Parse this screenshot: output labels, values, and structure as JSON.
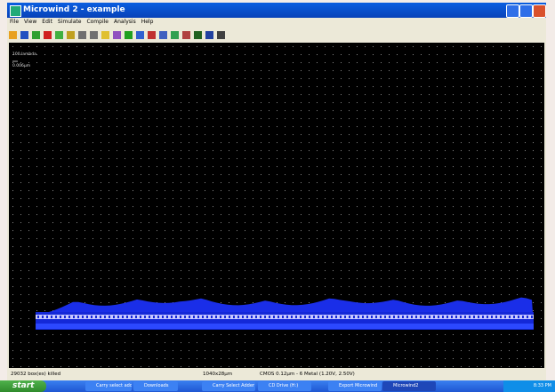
{
  "window": {
    "title": "Microwind 2 - example",
    "menu": [
      "File",
      "View",
      "Edit",
      "Simulate",
      "Compile",
      "Analysis",
      "Help"
    ]
  },
  "canvas": {
    "scale_label": "100 lambda",
    "scale_value": "0.006µm"
  },
  "status": [
    "29032 box(es) killed",
    "1040x28µm",
    "CMOS 0.12µm - 6 Metal (1.20V, 2.50V)"
  ],
  "taskbar": {
    "start": "start",
    "items": [
      "Carry select adders d...",
      "Downloads",
      "Carry Select Adder - ...",
      "CD Drive (H:)",
      "Export Microwind",
      "Microwind2"
    ],
    "clock": "8:33 PM"
  }
}
